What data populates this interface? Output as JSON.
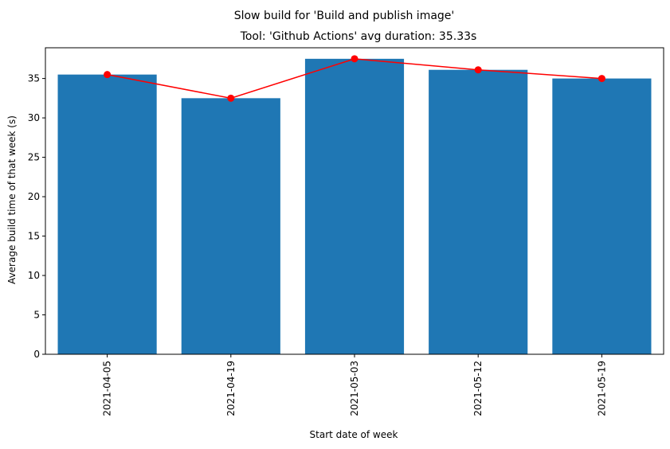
{
  "chart_data": {
    "type": "bar",
    "suptitle": "Slow build for 'Build and publish image'",
    "title": "Tool: 'Github Actions' avg duration: 35.33s",
    "xlabel": "Start date of week",
    "ylabel": "Average build time of that week (s)",
    "categories": [
      "2021-04-05",
      "2021-04-19",
      "2021-05-03",
      "2021-05-12",
      "2021-05-19"
    ],
    "values": [
      35.5,
      32.5,
      37.5,
      36.1,
      35.0
    ],
    "line_values": [
      35.5,
      32.5,
      37.5,
      36.1,
      35.0
    ],
    "ylim": [
      0,
      38.9
    ],
    "yticks": [
      0,
      5,
      10,
      15,
      20,
      25,
      30,
      35
    ],
    "bar_color": "#1f77b4",
    "line_color": "#ff0000",
    "grid": false,
    "legend": "none"
  }
}
